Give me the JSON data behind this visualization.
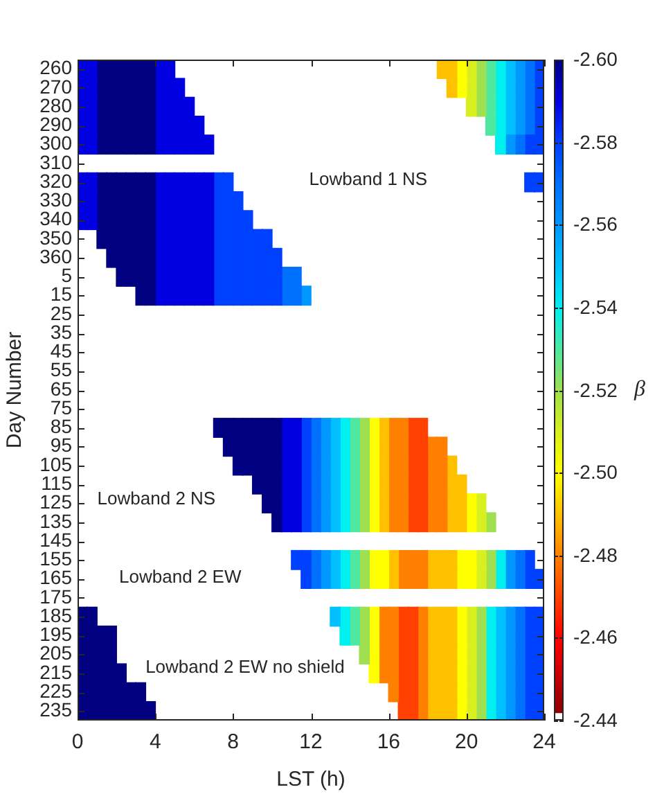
{
  "chart_data": {
    "type": "heatmap",
    "xlabel": "LST (h)",
    "ylabel": "Day Number",
    "clabel": "β",
    "x": [
      0.25,
      0.75,
      1.25,
      1.75,
      2.25,
      2.75,
      3.25,
      3.75,
      4.25,
      4.75,
      5.25,
      5.75,
      6.25,
      6.75,
      7.25,
      7.75,
      8.25,
      8.75,
      9.25,
      9.75,
      10.25,
      10.75,
      11.25,
      11.75,
      12.25,
      12.75,
      13.25,
      13.75,
      14.25,
      14.75,
      15.25,
      15.75,
      16.25,
      16.75,
      17.25,
      17.75,
      18.25,
      18.75,
      19.25,
      19.75,
      20.25,
      20.75,
      21.25,
      21.75,
      22.25,
      22.75,
      23.25,
      23.75
    ],
    "xlim": [
      0,
      24
    ],
    "xticks": [
      0,
      4,
      8,
      12,
      16,
      20,
      24
    ],
    "y_categories": [
      "260",
      "270",
      "280",
      "290",
      "300",
      "310",
      "320",
      "330",
      "340",
      "350",
      "360",
      "5",
      "15",
      "25",
      "35",
      "45",
      "55",
      "65",
      "75",
      "85",
      "95",
      "105",
      "115",
      "125",
      "135",
      "145",
      "155",
      "165",
      "175",
      "185",
      "195",
      "205",
      "215",
      "225",
      "235"
    ],
    "clim": [
      -2.44,
      -2.6
    ],
    "cticks": [
      {
        "value": -2.6,
        "label": "-2.60"
      },
      -2.58,
      -2.56,
      -2.54,
      -2.52,
      {
        "value": -2.5,
        "label": "-2.50"
      },
      -2.48,
      -2.46,
      -2.44
    ],
    "annotations": [
      "Lowband 1 NS",
      "Lowband 2 NS",
      "Lowband 2 EW",
      "Lowband 2 EW no shield"
    ],
    "cells": [
      [
        -2.59,
        -2.59,
        -2.6,
        -2.6,
        -2.6,
        -2.6,
        -2.6,
        -2.6,
        -2.59,
        -2.59,
        null,
        null,
        null,
        null,
        null,
        null,
        null,
        null,
        null,
        null,
        null,
        null,
        null,
        null,
        null,
        null,
        null,
        null,
        null,
        null,
        null,
        null,
        null,
        null,
        null,
        null,
        null,
        -2.49,
        -2.49,
        -2.5,
        -2.51,
        -2.52,
        -2.53,
        -2.54,
        -2.55,
        -2.56,
        -2.57,
        -2.58
      ],
      [
        -2.59,
        -2.59,
        -2.6,
        -2.6,
        -2.6,
        -2.6,
        -2.6,
        -2.6,
        -2.59,
        -2.59,
        -2.59,
        null,
        null,
        null,
        null,
        null,
        null,
        null,
        null,
        null,
        null,
        null,
        null,
        null,
        null,
        null,
        null,
        null,
        null,
        null,
        null,
        null,
        null,
        null,
        null,
        null,
        null,
        null,
        -2.49,
        -2.5,
        -2.51,
        -2.52,
        -2.53,
        -2.54,
        -2.55,
        -2.56,
        -2.57,
        -2.58
      ],
      [
        -2.59,
        -2.59,
        -2.6,
        -2.6,
        -2.6,
        -2.6,
        -2.6,
        -2.6,
        -2.59,
        -2.59,
        -2.59,
        -2.59,
        null,
        null,
        null,
        null,
        null,
        null,
        null,
        null,
        null,
        null,
        null,
        null,
        null,
        null,
        null,
        null,
        null,
        null,
        null,
        null,
        null,
        null,
        null,
        null,
        null,
        null,
        null,
        null,
        -2.51,
        -2.52,
        -2.53,
        -2.54,
        -2.55,
        -2.56,
        -2.57,
        -2.58
      ],
      [
        -2.59,
        -2.59,
        -2.6,
        -2.6,
        -2.6,
        -2.6,
        -2.6,
        -2.6,
        -2.59,
        -2.59,
        -2.59,
        -2.59,
        -2.59,
        null,
        null,
        null,
        null,
        null,
        null,
        null,
        null,
        null,
        null,
        null,
        null,
        null,
        null,
        null,
        null,
        null,
        null,
        null,
        null,
        null,
        null,
        null,
        null,
        null,
        null,
        null,
        null,
        null,
        -2.53,
        -2.54,
        -2.55,
        -2.56,
        -2.57,
        -2.58
      ],
      [
        -2.59,
        -2.59,
        -2.6,
        -2.6,
        -2.6,
        -2.6,
        -2.6,
        -2.6,
        -2.59,
        -2.59,
        -2.59,
        -2.59,
        -2.59,
        -2.59,
        null,
        null,
        null,
        null,
        null,
        null,
        null,
        null,
        null,
        null,
        null,
        null,
        null,
        null,
        null,
        null,
        null,
        null,
        null,
        null,
        null,
        null,
        null,
        null,
        null,
        null,
        null,
        null,
        null,
        -2.54,
        -2.56,
        -2.57,
        -2.58,
        -2.58
      ],
      [
        null,
        null,
        null,
        null,
        null,
        null,
        null,
        null,
        null,
        null,
        null,
        null,
        null,
        null,
        null,
        null,
        null,
        null,
        null,
        null,
        null,
        null,
        null,
        null,
        null,
        null,
        null,
        null,
        null,
        null,
        null,
        null,
        null,
        null,
        null,
        null,
        null,
        null,
        null,
        null,
        null,
        null,
        null,
        null,
        null,
        null,
        null,
        null
      ],
      [
        -2.59,
        -2.59,
        -2.6,
        -2.6,
        -2.6,
        -2.6,
        -2.6,
        -2.6,
        -2.59,
        -2.59,
        -2.59,
        -2.59,
        -2.59,
        -2.59,
        -2.58,
        -2.58,
        null,
        null,
        null,
        null,
        null,
        null,
        null,
        null,
        null,
        null,
        null,
        null,
        null,
        null,
        null,
        null,
        null,
        null,
        null,
        null,
        null,
        null,
        null,
        null,
        null,
        null,
        null,
        null,
        null,
        null,
        -2.58,
        -2.58
      ],
      [
        -2.59,
        -2.59,
        -2.6,
        -2.6,
        -2.6,
        -2.6,
        -2.6,
        -2.6,
        -2.59,
        -2.59,
        -2.59,
        -2.59,
        -2.59,
        -2.59,
        -2.58,
        -2.58,
        -2.58,
        null,
        null,
        null,
        null,
        null,
        null,
        null,
        null,
        null,
        null,
        null,
        null,
        null,
        null,
        null,
        null,
        null,
        null,
        null,
        null,
        null,
        null,
        null,
        null,
        null,
        null,
        null,
        null,
        null,
        null,
        null
      ],
      [
        -2.59,
        -2.59,
        -2.6,
        -2.6,
        -2.6,
        -2.6,
        -2.6,
        -2.6,
        -2.59,
        -2.59,
        -2.59,
        -2.59,
        -2.59,
        -2.59,
        -2.58,
        -2.58,
        -2.58,
        -2.58,
        null,
        null,
        null,
        null,
        null,
        null,
        null,
        null,
        null,
        null,
        null,
        null,
        null,
        null,
        null,
        null,
        null,
        null,
        null,
        null,
        null,
        null,
        null,
        null,
        null,
        null,
        null,
        null,
        null,
        null
      ],
      [
        null,
        null,
        -2.6,
        -2.6,
        -2.6,
        -2.6,
        -2.6,
        -2.6,
        -2.59,
        -2.59,
        -2.59,
        -2.59,
        -2.59,
        -2.59,
        -2.58,
        -2.58,
        -2.58,
        -2.58,
        -2.58,
        -2.58,
        null,
        null,
        null,
        null,
        null,
        null,
        null,
        null,
        null,
        null,
        null,
        null,
        null,
        null,
        null,
        null,
        null,
        null,
        null,
        null,
        null,
        null,
        null,
        null,
        null,
        null,
        null,
        null
      ],
      [
        null,
        null,
        null,
        -2.6,
        -2.6,
        -2.6,
        -2.6,
        -2.6,
        -2.59,
        -2.59,
        -2.59,
        -2.59,
        -2.59,
        -2.59,
        -2.58,
        -2.58,
        -2.58,
        -2.58,
        -2.58,
        -2.58,
        -2.58,
        null,
        null,
        null,
        null,
        null,
        null,
        null,
        null,
        null,
        null,
        null,
        null,
        null,
        null,
        null,
        null,
        null,
        null,
        null,
        null,
        null,
        null,
        null,
        null,
        null,
        null,
        null
      ],
      [
        null,
        null,
        null,
        null,
        -2.6,
        -2.6,
        -2.6,
        -2.6,
        -2.59,
        -2.59,
        -2.59,
        -2.59,
        -2.59,
        -2.59,
        -2.58,
        -2.58,
        -2.58,
        -2.58,
        -2.58,
        -2.58,
        -2.58,
        -2.57,
        -2.57,
        null,
        null,
        null,
        null,
        null,
        null,
        null,
        null,
        null,
        null,
        null,
        null,
        null,
        null,
        null,
        null,
        null,
        null,
        null,
        null,
        null,
        null,
        null,
        null,
        null
      ],
      [
        null,
        null,
        null,
        null,
        null,
        null,
        -2.6,
        -2.6,
        -2.59,
        -2.59,
        -2.59,
        -2.59,
        -2.59,
        -2.59,
        -2.58,
        -2.58,
        -2.58,
        -2.58,
        -2.58,
        -2.58,
        -2.58,
        -2.57,
        -2.57,
        -2.56,
        null,
        null,
        null,
        null,
        null,
        null,
        null,
        null,
        null,
        null,
        null,
        null,
        null,
        null,
        null,
        null,
        null,
        null,
        null,
        null,
        null,
        null,
        null,
        null
      ],
      [
        null,
        null,
        null,
        null,
        null,
        null,
        null,
        null,
        null,
        null,
        null,
        null,
        null,
        null,
        null,
        null,
        null,
        null,
        null,
        null,
        null,
        null,
        null,
        null,
        null,
        null,
        null,
        null,
        null,
        null,
        null,
        null,
        null,
        null,
        null,
        null,
        null,
        null,
        null,
        null,
        null,
        null,
        null,
        null,
        null,
        null,
        null,
        null
      ],
      [
        null,
        null,
        null,
        null,
        null,
        null,
        null,
        null,
        null,
        null,
        null,
        null,
        null,
        null,
        null,
        null,
        null,
        null,
        null,
        null,
        null,
        null,
        null,
        null,
        null,
        null,
        null,
        null,
        null,
        null,
        null,
        null,
        null,
        null,
        null,
        null,
        null,
        null,
        null,
        null,
        null,
        null,
        null,
        null,
        null,
        null,
        null,
        null
      ],
      [
        null,
        null,
        null,
        null,
        null,
        null,
        null,
        null,
        null,
        null,
        null,
        null,
        null,
        null,
        null,
        null,
        null,
        null,
        null,
        null,
        null,
        null,
        null,
        null,
        null,
        null,
        null,
        null,
        null,
        null,
        null,
        null,
        null,
        null,
        null,
        null,
        null,
        null,
        null,
        null,
        null,
        null,
        null,
        null,
        null,
        null,
        null,
        null
      ],
      [
        null,
        null,
        null,
        null,
        null,
        null,
        null,
        null,
        null,
        null,
        null,
        null,
        null,
        null,
        null,
        null,
        null,
        null,
        null,
        null,
        null,
        null,
        null,
        null,
        null,
        null,
        null,
        null,
        null,
        null,
        null,
        null,
        null,
        null,
        null,
        null,
        null,
        null,
        null,
        null,
        null,
        null,
        null,
        null,
        null,
        null,
        null,
        null
      ],
      [
        null,
        null,
        null,
        null,
        null,
        null,
        null,
        null,
        null,
        null,
        null,
        null,
        null,
        null,
        null,
        null,
        null,
        null,
        null,
        null,
        null,
        null,
        null,
        null,
        null,
        null,
        null,
        null,
        null,
        null,
        null,
        null,
        null,
        null,
        null,
        null,
        null,
        null,
        null,
        null,
        null,
        null,
        null,
        null,
        null,
        null,
        null,
        null
      ],
      [
        null,
        null,
        null,
        null,
        null,
        null,
        null,
        null,
        null,
        null,
        null,
        null,
        null,
        null,
        null,
        null,
        null,
        null,
        null,
        null,
        null,
        null,
        null,
        null,
        null,
        null,
        null,
        null,
        null,
        null,
        null,
        null,
        null,
        null,
        null,
        null,
        null,
        null,
        null,
        null,
        null,
        null,
        null,
        null,
        null,
        null,
        null,
        null
      ],
      [
        null,
        null,
        null,
        null,
        null,
        null,
        null,
        null,
        null,
        null,
        null,
        null,
        null,
        null,
        -2.6,
        -2.6,
        -2.6,
        -2.6,
        -2.6,
        -2.6,
        -2.6,
        -2.59,
        -2.59,
        -2.58,
        -2.57,
        -2.56,
        -2.55,
        -2.54,
        -2.53,
        -2.52,
        -2.5,
        -2.49,
        -2.48,
        -2.48,
        -2.47,
        -2.47,
        null,
        null,
        null,
        null,
        null,
        null,
        null,
        null,
        null,
        null,
        null,
        null
      ],
      [
        null,
        null,
        null,
        null,
        null,
        null,
        null,
        null,
        null,
        null,
        null,
        null,
        null,
        null,
        null,
        -2.6,
        -2.6,
        -2.6,
        -2.6,
        -2.6,
        -2.6,
        -2.59,
        -2.59,
        -2.58,
        -2.57,
        -2.56,
        -2.55,
        -2.54,
        -2.53,
        -2.52,
        -2.5,
        -2.49,
        -2.48,
        -2.48,
        -2.47,
        -2.47,
        -2.48,
        -2.48,
        null,
        null,
        null,
        null,
        null,
        null,
        null,
        null,
        null,
        null
      ],
      [
        null,
        null,
        null,
        null,
        null,
        null,
        null,
        null,
        null,
        null,
        null,
        null,
        null,
        null,
        null,
        null,
        -2.6,
        -2.6,
        -2.6,
        -2.6,
        -2.6,
        -2.59,
        -2.59,
        -2.58,
        -2.57,
        -2.56,
        -2.55,
        -2.54,
        -2.53,
        -2.52,
        -2.5,
        -2.49,
        -2.48,
        -2.48,
        -2.47,
        -2.47,
        -2.48,
        -2.48,
        -2.49,
        null,
        null,
        null,
        null,
        null,
        null,
        null,
        null,
        null
      ],
      [
        null,
        null,
        null,
        null,
        null,
        null,
        null,
        null,
        null,
        null,
        null,
        null,
        null,
        null,
        null,
        null,
        null,
        null,
        -2.6,
        -2.6,
        -2.6,
        -2.59,
        -2.59,
        -2.58,
        -2.57,
        -2.56,
        -2.55,
        -2.54,
        -2.53,
        -2.52,
        -2.5,
        -2.49,
        -2.48,
        -2.48,
        -2.47,
        -2.47,
        -2.48,
        -2.48,
        -2.49,
        -2.49,
        null,
        null,
        null,
        null,
        null,
        null,
        null,
        null
      ],
      [
        null,
        null,
        null,
        null,
        null,
        null,
        null,
        null,
        null,
        null,
        null,
        null,
        null,
        null,
        null,
        null,
        null,
        null,
        null,
        -2.6,
        -2.6,
        -2.59,
        -2.59,
        -2.58,
        -2.57,
        -2.56,
        -2.55,
        -2.54,
        -2.53,
        -2.52,
        -2.5,
        -2.49,
        -2.48,
        -2.48,
        -2.47,
        -2.47,
        -2.48,
        -2.48,
        -2.49,
        -2.49,
        -2.5,
        -2.51,
        null,
        null,
        null,
        null,
        null,
        null
      ],
      [
        null,
        null,
        null,
        null,
        null,
        null,
        null,
        null,
        null,
        null,
        null,
        null,
        null,
        null,
        null,
        null,
        null,
        null,
        null,
        null,
        -2.6,
        -2.59,
        -2.59,
        -2.58,
        -2.57,
        -2.56,
        -2.55,
        -2.54,
        -2.53,
        -2.52,
        -2.5,
        -2.49,
        -2.48,
        -2.48,
        -2.47,
        -2.47,
        -2.48,
        -2.48,
        -2.49,
        -2.49,
        -2.5,
        -2.51,
        -2.52,
        null,
        null,
        null,
        null,
        null
      ],
      [
        null,
        null,
        null,
        null,
        null,
        null,
        null,
        null,
        null,
        null,
        null,
        null,
        null,
        null,
        null,
        null,
        null,
        null,
        null,
        null,
        null,
        null,
        null,
        null,
        null,
        null,
        null,
        null,
        null,
        null,
        null,
        null,
        null,
        null,
        null,
        null,
        null,
        null,
        null,
        null,
        null,
        null,
        null,
        null,
        null,
        null,
        null,
        null
      ],
      [
        null,
        null,
        null,
        null,
        null,
        null,
        null,
        null,
        null,
        null,
        null,
        null,
        null,
        null,
        null,
        null,
        null,
        null,
        null,
        null,
        null,
        null,
        -2.58,
        -2.58,
        -2.57,
        -2.56,
        -2.55,
        -2.54,
        -2.53,
        -2.52,
        -2.5,
        -2.5,
        -2.49,
        -2.48,
        -2.48,
        -2.48,
        -2.49,
        -2.49,
        -2.49,
        -2.5,
        -2.5,
        -2.51,
        -2.52,
        -2.54,
        -2.56,
        -2.57,
        -2.58,
        null
      ],
      [
        null,
        null,
        null,
        null,
        null,
        null,
        null,
        null,
        null,
        null,
        null,
        null,
        null,
        null,
        null,
        null,
        null,
        null,
        null,
        null,
        null,
        null,
        null,
        -2.58,
        -2.57,
        -2.56,
        -2.55,
        -2.54,
        -2.53,
        -2.52,
        -2.5,
        -2.5,
        -2.49,
        -2.48,
        -2.48,
        -2.48,
        -2.49,
        -2.49,
        -2.49,
        -2.5,
        -2.5,
        -2.51,
        -2.52,
        -2.54,
        -2.56,
        -2.57,
        -2.58,
        -2.58
      ],
      [
        null,
        null,
        null,
        null,
        null,
        null,
        null,
        null,
        null,
        null,
        null,
        null,
        null,
        null,
        null,
        null,
        null,
        null,
        null,
        null,
        null,
        null,
        null,
        null,
        null,
        null,
        null,
        null,
        null,
        null,
        null,
        null,
        null,
        null,
        null,
        null,
        null,
        null,
        null,
        null,
        null,
        null,
        null,
        null,
        null,
        null,
        null,
        null
      ],
      [
        -2.6,
        -2.6,
        null,
        null,
        null,
        null,
        null,
        null,
        null,
        null,
        null,
        null,
        null,
        null,
        null,
        null,
        null,
        null,
        null,
        null,
        null,
        null,
        null,
        null,
        null,
        null,
        -2.55,
        -2.54,
        -2.53,
        -2.52,
        -2.5,
        -2.48,
        -2.48,
        -2.47,
        -2.47,
        -2.48,
        -2.49,
        -2.49,
        -2.49,
        -2.5,
        -2.51,
        -2.52,
        -2.54,
        -2.55,
        -2.56,
        -2.57,
        -2.58,
        -2.58
      ],
      [
        -2.6,
        -2.6,
        -2.6,
        -2.6,
        null,
        null,
        null,
        null,
        null,
        null,
        null,
        null,
        null,
        null,
        null,
        null,
        null,
        null,
        null,
        null,
        null,
        null,
        null,
        null,
        null,
        null,
        null,
        -2.54,
        -2.53,
        -2.52,
        -2.5,
        -2.48,
        -2.48,
        -2.47,
        -2.47,
        -2.48,
        -2.49,
        -2.49,
        -2.49,
        -2.5,
        -2.51,
        -2.52,
        -2.54,
        -2.55,
        -2.56,
        -2.57,
        -2.58,
        -2.58
      ],
      [
        -2.6,
        -2.6,
        -2.6,
        -2.6,
        null,
        null,
        null,
        null,
        null,
        null,
        null,
        null,
        null,
        null,
        null,
        null,
        null,
        null,
        null,
        null,
        null,
        null,
        null,
        null,
        null,
        null,
        null,
        null,
        null,
        -2.52,
        -2.5,
        -2.48,
        -2.48,
        -2.47,
        -2.47,
        -2.48,
        -2.49,
        -2.49,
        -2.49,
        -2.5,
        -2.51,
        -2.52,
        -2.54,
        -2.55,
        -2.56,
        -2.57,
        -2.58,
        -2.58
      ],
      [
        -2.6,
        -2.6,
        -2.6,
        -2.6,
        -2.6,
        null,
        null,
        null,
        null,
        null,
        null,
        null,
        null,
        null,
        null,
        null,
        null,
        null,
        null,
        null,
        null,
        null,
        null,
        null,
        null,
        null,
        null,
        null,
        null,
        null,
        -2.5,
        -2.48,
        -2.48,
        -2.47,
        -2.47,
        -2.48,
        -2.49,
        -2.49,
        -2.49,
        -2.5,
        -2.51,
        -2.52,
        -2.54,
        -2.55,
        -2.56,
        -2.57,
        -2.58,
        -2.58
      ],
      [
        -2.6,
        -2.6,
        -2.6,
        -2.6,
        -2.6,
        -2.6,
        -2.6,
        null,
        null,
        null,
        null,
        null,
        null,
        null,
        null,
        null,
        null,
        null,
        null,
        null,
        null,
        null,
        null,
        null,
        null,
        null,
        null,
        null,
        null,
        null,
        null,
        null,
        -2.48,
        -2.47,
        -2.47,
        -2.48,
        -2.49,
        -2.49,
        -2.49,
        -2.5,
        -2.51,
        -2.52,
        -2.54,
        -2.55,
        -2.56,
        -2.57,
        -2.58,
        -2.58
      ],
      [
        -2.6,
        -2.6,
        -2.6,
        -2.6,
        -2.6,
        -2.6,
        -2.6,
        -2.6,
        null,
        null,
        null,
        null,
        null,
        null,
        null,
        null,
        null,
        null,
        null,
        null,
        null,
        null,
        null,
        null,
        null,
        null,
        null,
        null,
        null,
        null,
        null,
        null,
        null,
        -2.47,
        -2.47,
        -2.48,
        -2.49,
        -2.49,
        -2.49,
        -2.5,
        -2.51,
        -2.52,
        -2.54,
        -2.55,
        -2.56,
        -2.57,
        -2.58,
        -2.58
      ]
    ]
  }
}
